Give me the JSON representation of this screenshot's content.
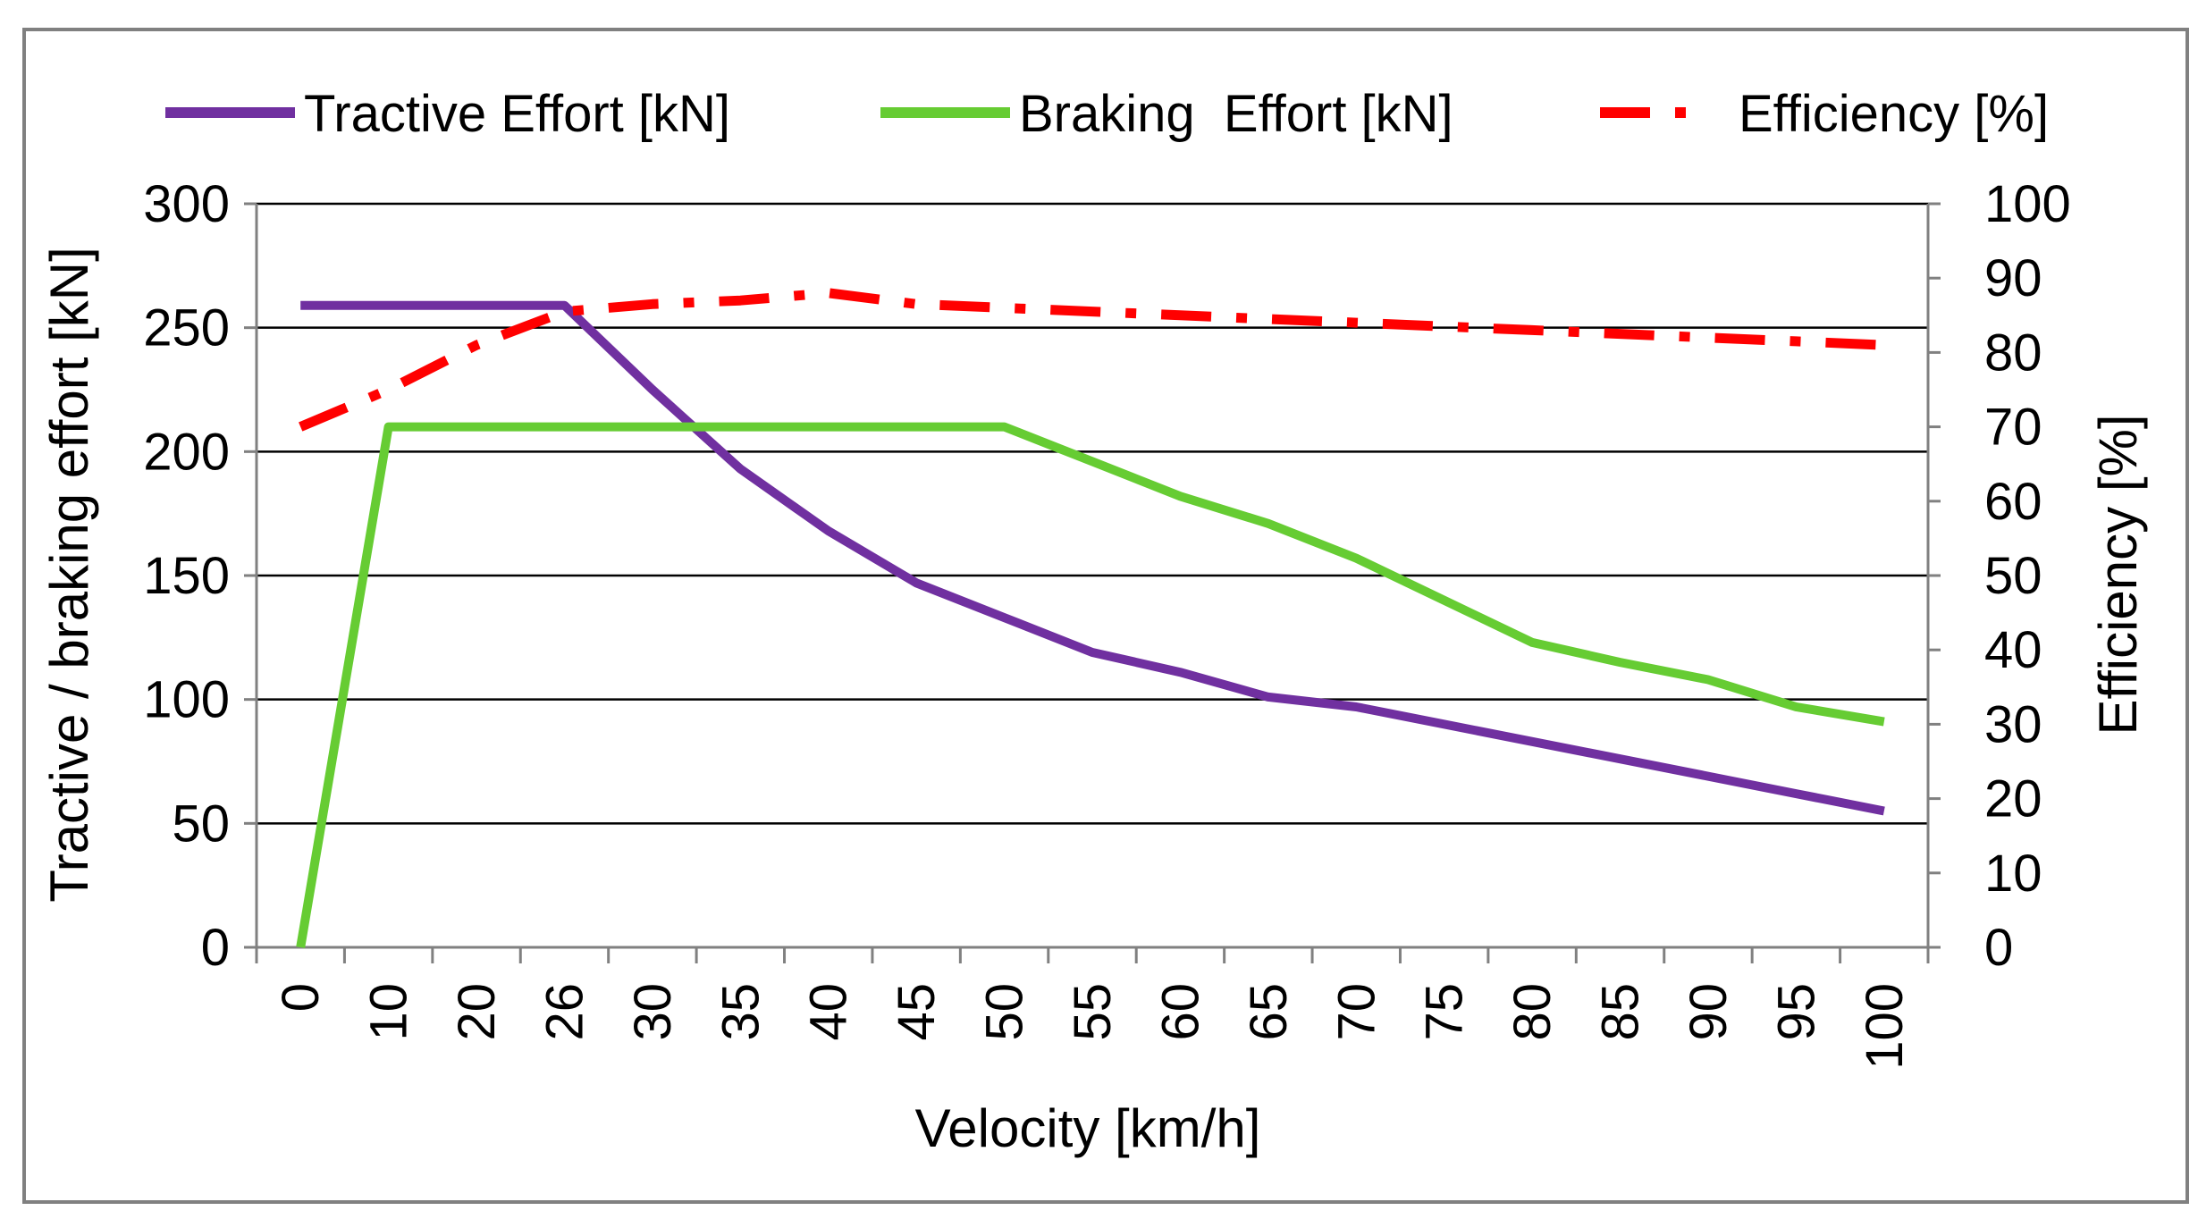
{
  "chart_data": {
    "type": "line",
    "title": "",
    "categories": [
      "0",
      "10",
      "20",
      "26",
      "30",
      "35",
      "40",
      "45",
      "50",
      "55",
      "60",
      "65",
      "70",
      "75",
      "80",
      "85",
      "90",
      "95",
      "100"
    ],
    "xlabel": "Velocity [km/h]",
    "ylabel": "Tractive / braking effort [kN]",
    "y2label": "Efficiency [%]",
    "ylim": [
      0,
      300
    ],
    "y2lim": [
      0,
      100
    ],
    "yticks": [
      "0",
      "50",
      "100",
      "150",
      "200",
      "250",
      "300"
    ],
    "y2ticks": [
      "0",
      "10",
      "20",
      "30",
      "40",
      "50",
      "60",
      "70",
      "80",
      "90",
      "100"
    ],
    "grid": true,
    "legend_position": "top",
    "series": [
      {
        "name": "Tractive Effort [kN]",
        "axis": "left",
        "color": "#7030A0",
        "style": "solid",
        "values": [
          259,
          259,
          259,
          259,
          225,
          193,
          168,
          147,
          133,
          119,
          111,
          101,
          97,
          90,
          83,
          76,
          69,
          62,
          55
        ]
      },
      {
        "name": "Braking  Effort [kN]",
        "axis": "left",
        "color": "#66CC33",
        "style": "solid",
        "values": [
          0,
          210,
          210,
          210,
          210,
          210,
          210,
          210,
          210,
          196,
          182,
          171,
          157,
          140,
          123,
          115,
          108,
          97,
          91
        ]
      },
      {
        "name": "Efficiency [%]",
        "axis": "right",
        "color": "#FF0000",
        "style": "dash-dot",
        "values": [
          70,
          75,
          81,
          85.5,
          86.5,
          87,
          88,
          86.5,
          86,
          85.5,
          85,
          84.5,
          84,
          83.5,
          83,
          82.5,
          82,
          81.5,
          81
        ]
      }
    ]
  }
}
